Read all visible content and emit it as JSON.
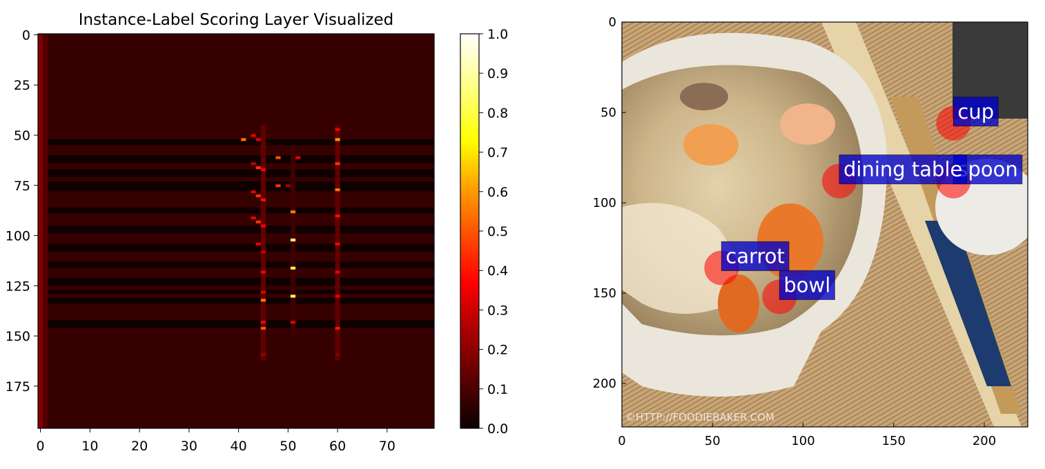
{
  "chart_data": [
    {
      "type": "heatmap",
      "title": "Instance-Label Scoring Layer Visualized",
      "xlabel": "",
      "ylabel": "",
      "xlim": [
        -0.5,
        79.5
      ],
      "ylim": [
        196,
        -0.5
      ],
      "x_ticks": [
        0,
        10,
        20,
        30,
        40,
        50,
        60,
        70
      ],
      "y_ticks": [
        0,
        25,
        50,
        75,
        100,
        125,
        150,
        175
      ],
      "colormap": "hot",
      "colorbar": {
        "ticks": [
          "0.0",
          "0.1",
          "0.2",
          "0.3",
          "0.4",
          "0.5",
          "0.6",
          "0.7",
          "0.8",
          "0.9",
          "1.0"
        ],
        "range": [
          0,
          1
        ]
      },
      "background_value": 0.04,
      "dark_row_bands": [
        [
          52,
          54
        ],
        [
          60,
          63
        ],
        [
          67,
          70
        ],
        [
          73,
          77
        ],
        [
          86,
          88
        ],
        [
          95,
          98
        ],
        [
          104,
          107
        ],
        [
          113,
          115
        ],
        [
          121,
          124
        ],
        [
          127,
          128
        ],
        [
          131,
          133
        ],
        [
          142,
          145
        ]
      ],
      "bright_columns": [
        {
          "x": 0,
          "rows": [
            0,
            196
          ],
          "value": 0.15
        },
        {
          "x": 1,
          "rows": [
            0,
            196
          ],
          "value": 0.08
        },
        {
          "x": 45,
          "rows": [
            45,
            162
          ],
          "value": 0.1
        },
        {
          "x": 60,
          "rows": [
            45,
            162
          ],
          "value": 0.1
        },
        {
          "x": 51,
          "rows": [
            55,
            150
          ],
          "value": 0.05
        }
      ],
      "hot_cells": [
        {
          "x": 41,
          "y": 52,
          "v": 0.55
        },
        {
          "x": 43,
          "y": 50,
          "v": 0.3
        },
        {
          "x": 44,
          "y": 52,
          "v": 0.3
        },
        {
          "x": 44,
          "y": 66,
          "v": 0.45
        },
        {
          "x": 45,
          "y": 67,
          "v": 0.35
        },
        {
          "x": 43,
          "y": 64,
          "v": 0.25
        },
        {
          "x": 44,
          "y": 80,
          "v": 0.45
        },
        {
          "x": 45,
          "y": 82,
          "v": 0.4
        },
        {
          "x": 43,
          "y": 78,
          "v": 0.3
        },
        {
          "x": 44,
          "y": 93,
          "v": 0.45
        },
        {
          "x": 45,
          "y": 95,
          "v": 0.35
        },
        {
          "x": 43,
          "y": 91,
          "v": 0.3
        },
        {
          "x": 44,
          "y": 104,
          "v": 0.3
        },
        {
          "x": 45,
          "y": 108,
          "v": 0.25
        },
        {
          "x": 45,
          "y": 118,
          "v": 0.35
        },
        {
          "x": 45,
          "y": 132,
          "v": 0.55
        },
        {
          "x": 45,
          "y": 128,
          "v": 0.3
        },
        {
          "x": 45,
          "y": 146,
          "v": 0.5
        },
        {
          "x": 45,
          "y": 143,
          "v": 0.35
        },
        {
          "x": 45,
          "y": 159,
          "v": 0.18
        },
        {
          "x": 48,
          "y": 61,
          "v": 0.5
        },
        {
          "x": 48,
          "y": 75,
          "v": 0.45
        },
        {
          "x": 52,
          "y": 61,
          "v": 0.3
        },
        {
          "x": 51,
          "y": 88,
          "v": 0.55
        },
        {
          "x": 51,
          "y": 102,
          "v": 0.85
        },
        {
          "x": 51,
          "y": 116,
          "v": 0.8
        },
        {
          "x": 51,
          "y": 130,
          "v": 0.82
        },
        {
          "x": 51,
          "y": 143,
          "v": 0.3
        },
        {
          "x": 50,
          "y": 75,
          "v": 0.2
        },
        {
          "x": 60,
          "y": 52,
          "v": 0.6
        },
        {
          "x": 60,
          "y": 47,
          "v": 0.3
        },
        {
          "x": 60,
          "y": 64,
          "v": 0.45
        },
        {
          "x": 60,
          "y": 77,
          "v": 0.55
        },
        {
          "x": 60,
          "y": 90,
          "v": 0.4
        },
        {
          "x": 60,
          "y": 104,
          "v": 0.35
        },
        {
          "x": 60,
          "y": 118,
          "v": 0.3
        },
        {
          "x": 60,
          "y": 130,
          "v": 0.3
        },
        {
          "x": 60,
          "y": 146,
          "v": 0.4
        },
        {
          "x": 60,
          "y": 159,
          "v": 0.15
        }
      ]
    },
    {
      "type": "scatter",
      "title": "",
      "xlabel": "",
      "ylabel": "",
      "xlim": [
        0,
        224
      ],
      "ylim": [
        224,
        0
      ],
      "x_ticks": [
        0,
        50,
        100,
        150,
        200
      ],
      "y_ticks": [
        0,
        50,
        100,
        150,
        200
      ],
      "background": "photo of a bowl of noodle soup with shrimp and carrots on a woven placemat, chopsticks and a spoon",
      "watermark": "©HTTP://FOODIEBAKER.COM",
      "marker_color": "#ff0000",
      "label_color": "#0000cc",
      "points": [
        {
          "label": "cup",
          "x": 183,
          "y": 56
        },
        {
          "label": "spoon",
          "x": 183,
          "y": 88
        },
        {
          "label": "dining table",
          "x": 120,
          "y": 88
        },
        {
          "label": "carrot",
          "x": 55,
          "y": 136
        },
        {
          "label": "bowl",
          "x": 87,
          "y": 152
        }
      ]
    }
  ]
}
